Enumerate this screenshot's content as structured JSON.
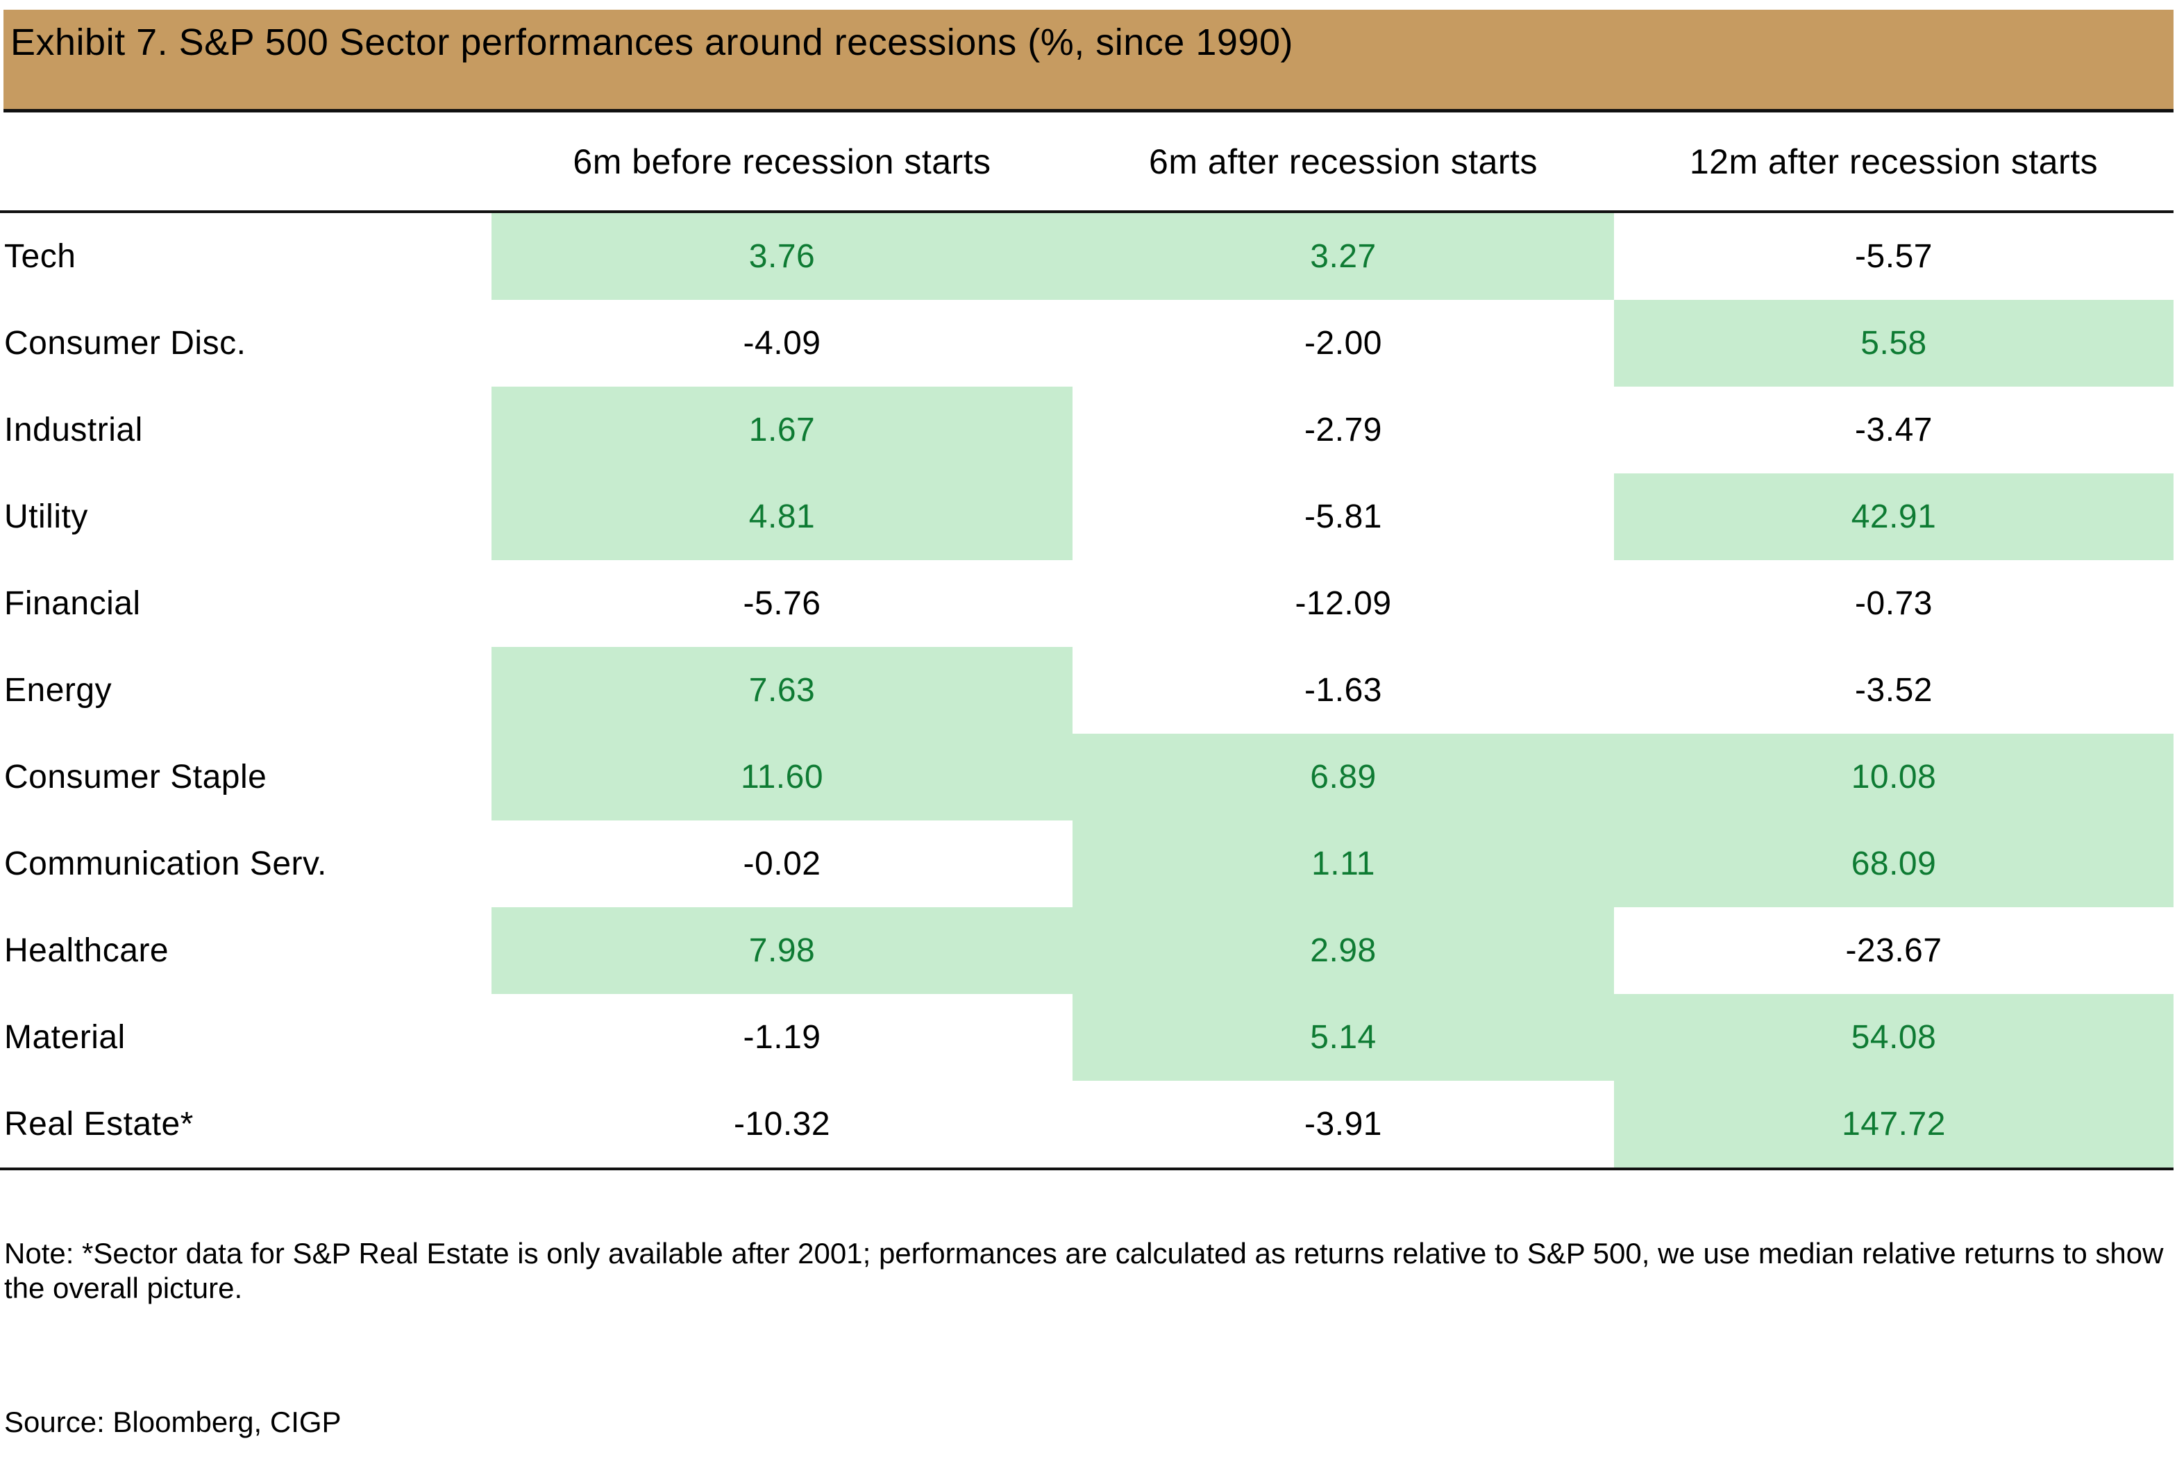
{
  "title": "Exhibit 7. S&P 500 Sector performances around recessions (%, since 1990)",
  "colors": {
    "title_bar": "#C69B61",
    "highlight_fill": "#C7ECCF",
    "highlight_text": "#0E7B33"
  },
  "table": {
    "columns": [
      "6m before recession starts",
      "6m after recession starts",
      "12m after recession starts"
    ],
    "rows": [
      {
        "sector": "Tech",
        "values": [
          "3.76",
          "3.27",
          "-5.57"
        ],
        "green": [
          true,
          true,
          false
        ]
      },
      {
        "sector": "Consumer Disc.",
        "values": [
          "-4.09",
          "-2.00",
          "5.58"
        ],
        "green": [
          false,
          false,
          true
        ]
      },
      {
        "sector": "Industrial",
        "values": [
          "1.67",
          "-2.79",
          "-3.47"
        ],
        "green": [
          true,
          false,
          false
        ]
      },
      {
        "sector": "Utility",
        "values": [
          "4.81",
          "-5.81",
          "42.91"
        ],
        "green": [
          true,
          false,
          true
        ]
      },
      {
        "sector": "Financial",
        "values": [
          "-5.76",
          "-12.09",
          "-0.73"
        ],
        "green": [
          false,
          false,
          false
        ]
      },
      {
        "sector": "Energy",
        "values": [
          "7.63",
          "-1.63",
          "-3.52"
        ],
        "green": [
          true,
          false,
          false
        ]
      },
      {
        "sector": "Consumer Staple",
        "values": [
          "11.60",
          "6.89",
          "10.08"
        ],
        "green": [
          true,
          true,
          true
        ]
      },
      {
        "sector": "Communication Serv.",
        "values": [
          "-0.02",
          "1.11",
          "68.09"
        ],
        "green": [
          false,
          true,
          true
        ]
      },
      {
        "sector": "Healthcare",
        "values": [
          "7.98",
          "2.98",
          "-23.67"
        ],
        "green": [
          true,
          true,
          false
        ]
      },
      {
        "sector": "Material",
        "values": [
          "-1.19",
          "5.14",
          "54.08"
        ],
        "green": [
          false,
          true,
          true
        ]
      },
      {
        "sector": "Real Estate*",
        "values": [
          "-10.32",
          "-3.91",
          "147.72"
        ],
        "green": [
          false,
          false,
          true
        ]
      }
    ]
  },
  "note": "Note: *Sector data for S&P Real Estate is only available after 2001; performances are calculated as returns relative to S&P 500, we use median relative returns to show the overall picture.",
  "source": "Source: Bloomberg, CIGP"
}
